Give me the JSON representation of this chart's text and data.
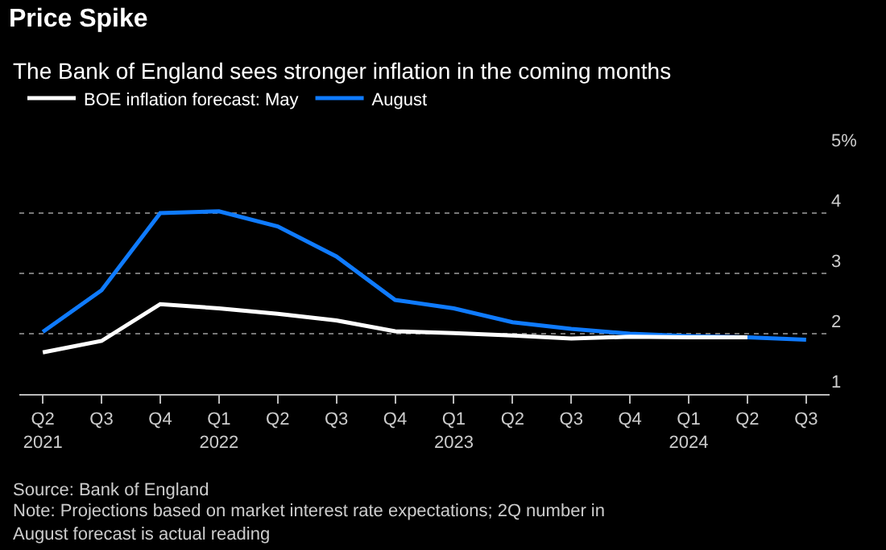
{
  "chart_data": {
    "type": "line",
    "title": "Price Spike",
    "subtitle": "The Bank of England sees stronger inflation in the coming months",
    "categories": [
      "Q2\n2021",
      "Q3",
      "Q4",
      "Q1\n2022",
      "Q2",
      "Q3",
      "Q4",
      "Q1\n2023",
      "Q2",
      "Q3",
      "Q4",
      "Q1\n2024",
      "Q2",
      "Q3"
    ],
    "series": [
      {
        "name": "BOE inflation forecast: May",
        "color": "#ffffff",
        "values": [
          1.69,
          1.88,
          2.49,
          2.42,
          2.33,
          2.22,
          2.04,
          2.01,
          1.97,
          1.92,
          1.95,
          1.94,
          1.94,
          null
        ]
      },
      {
        "name": "August",
        "color": "#0f7bff",
        "values": [
          2.03,
          2.72,
          4.0,
          4.03,
          3.78,
          3.28,
          2.56,
          2.42,
          2.19,
          2.08,
          2.0,
          1.96,
          1.94,
          1.9
        ]
      }
    ],
    "ylim": [
      1,
      5
    ],
    "yticks": [
      1,
      2,
      3,
      4,
      {
        "value": 5,
        "label": "5%"
      }
    ],
    "grid": "y",
    "legend": "top left",
    "marker": "none",
    "line_style": "solid",
    "annotations": [
      "Source: Bank of England",
      "Note: Projections based on market interest rate expectations; 2Q number in\nAugust forecast is actual reading"
    ]
  }
}
